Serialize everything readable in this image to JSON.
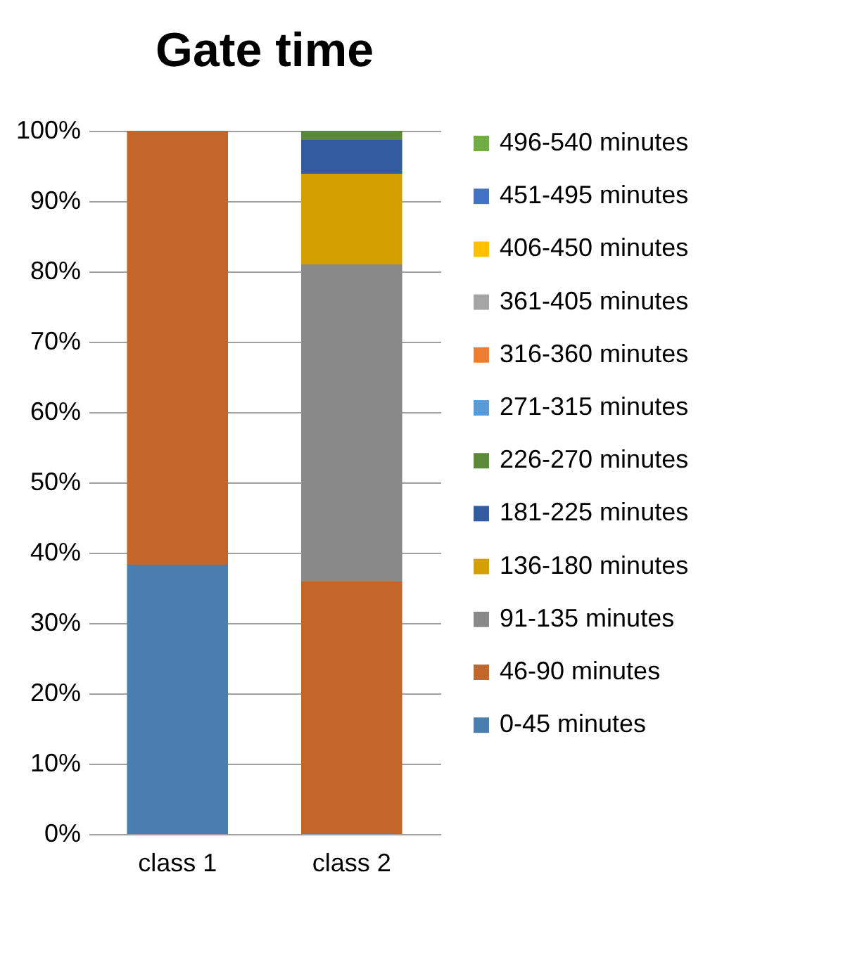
{
  "chart_data": {
    "type": "bar",
    "title": "Gate time",
    "stacked": true,
    "categories": [
      "class 1",
      "class 2"
    ],
    "series": [
      {
        "name": "0-45 minutes",
        "color": "#4a7eb0",
        "values": [
          38.3,
          0
        ]
      },
      {
        "name": "46-90 minutes",
        "color": "#c46529",
        "values": [
          61.7,
          35.9
        ]
      },
      {
        "name": "91-135 minutes",
        "color": "#898989",
        "values": [
          0,
          45.1
        ]
      },
      {
        "name": "136-180 minutes",
        "color": "#d49f00",
        "values": [
          0,
          12.9
        ]
      },
      {
        "name": "181-225 minutes",
        "color": "#335b9f",
        "values": [
          0,
          4.8
        ]
      },
      {
        "name": "226-270 minutes",
        "color": "#5a8a38",
        "values": [
          0,
          1.3
        ]
      },
      {
        "name": "271-315 minutes",
        "color": "#5b9bd5",
        "values": [
          0,
          0
        ]
      },
      {
        "name": "316-360 minutes",
        "color": "#ed7d31",
        "values": [
          0,
          0
        ]
      },
      {
        "name": "361-405 minutes",
        "color": "#a5a5a5",
        "values": [
          0,
          0
        ]
      },
      {
        "name": "406-450 minutes",
        "color": "#ffc000",
        "values": [
          0,
          0
        ]
      },
      {
        "name": "451-495 minutes",
        "color": "#4472c4",
        "values": [
          0,
          0
        ]
      },
      {
        "name": "496-540 minutes",
        "color": "#70ad47",
        "values": [
          0,
          0
        ]
      }
    ],
    "ylim": [
      0,
      100
    ],
    "yticks": [
      {
        "value": 0,
        "label": "0%"
      },
      {
        "value": 10,
        "label": "10%"
      },
      {
        "value": 20,
        "label": "20%"
      },
      {
        "value": 30,
        "label": "30%"
      },
      {
        "value": 40,
        "label": "40%"
      },
      {
        "value": 50,
        "label": "50%"
      },
      {
        "value": 60,
        "label": "60%"
      },
      {
        "value": 70,
        "label": "70%"
      },
      {
        "value": 80,
        "label": "80%"
      },
      {
        "value": 90,
        "label": "90%"
      },
      {
        "value": 100,
        "label": "100%"
      }
    ],
    "grid": "y",
    "legend": "right"
  }
}
